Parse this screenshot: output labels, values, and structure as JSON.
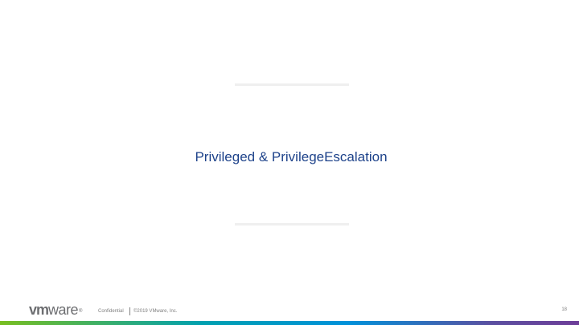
{
  "slide": {
    "title": "Privileged & PrivilegeEscalation"
  },
  "footer": {
    "logo_vm": "vm",
    "logo_ware": "ware",
    "logo_registered": "®",
    "confidential": "Confidential",
    "copyright": "©2019 VMware, Inc.",
    "page_number": "18"
  },
  "colors": {
    "title": "#1d428a",
    "rule": "#efefef",
    "footer_text": "#808080",
    "logo": "#6d6e71",
    "bar_gradient": [
      "#78be20",
      "#00a0b0",
      "#0091da",
      "#5b4fa0",
      "#6d3d98"
    ]
  }
}
